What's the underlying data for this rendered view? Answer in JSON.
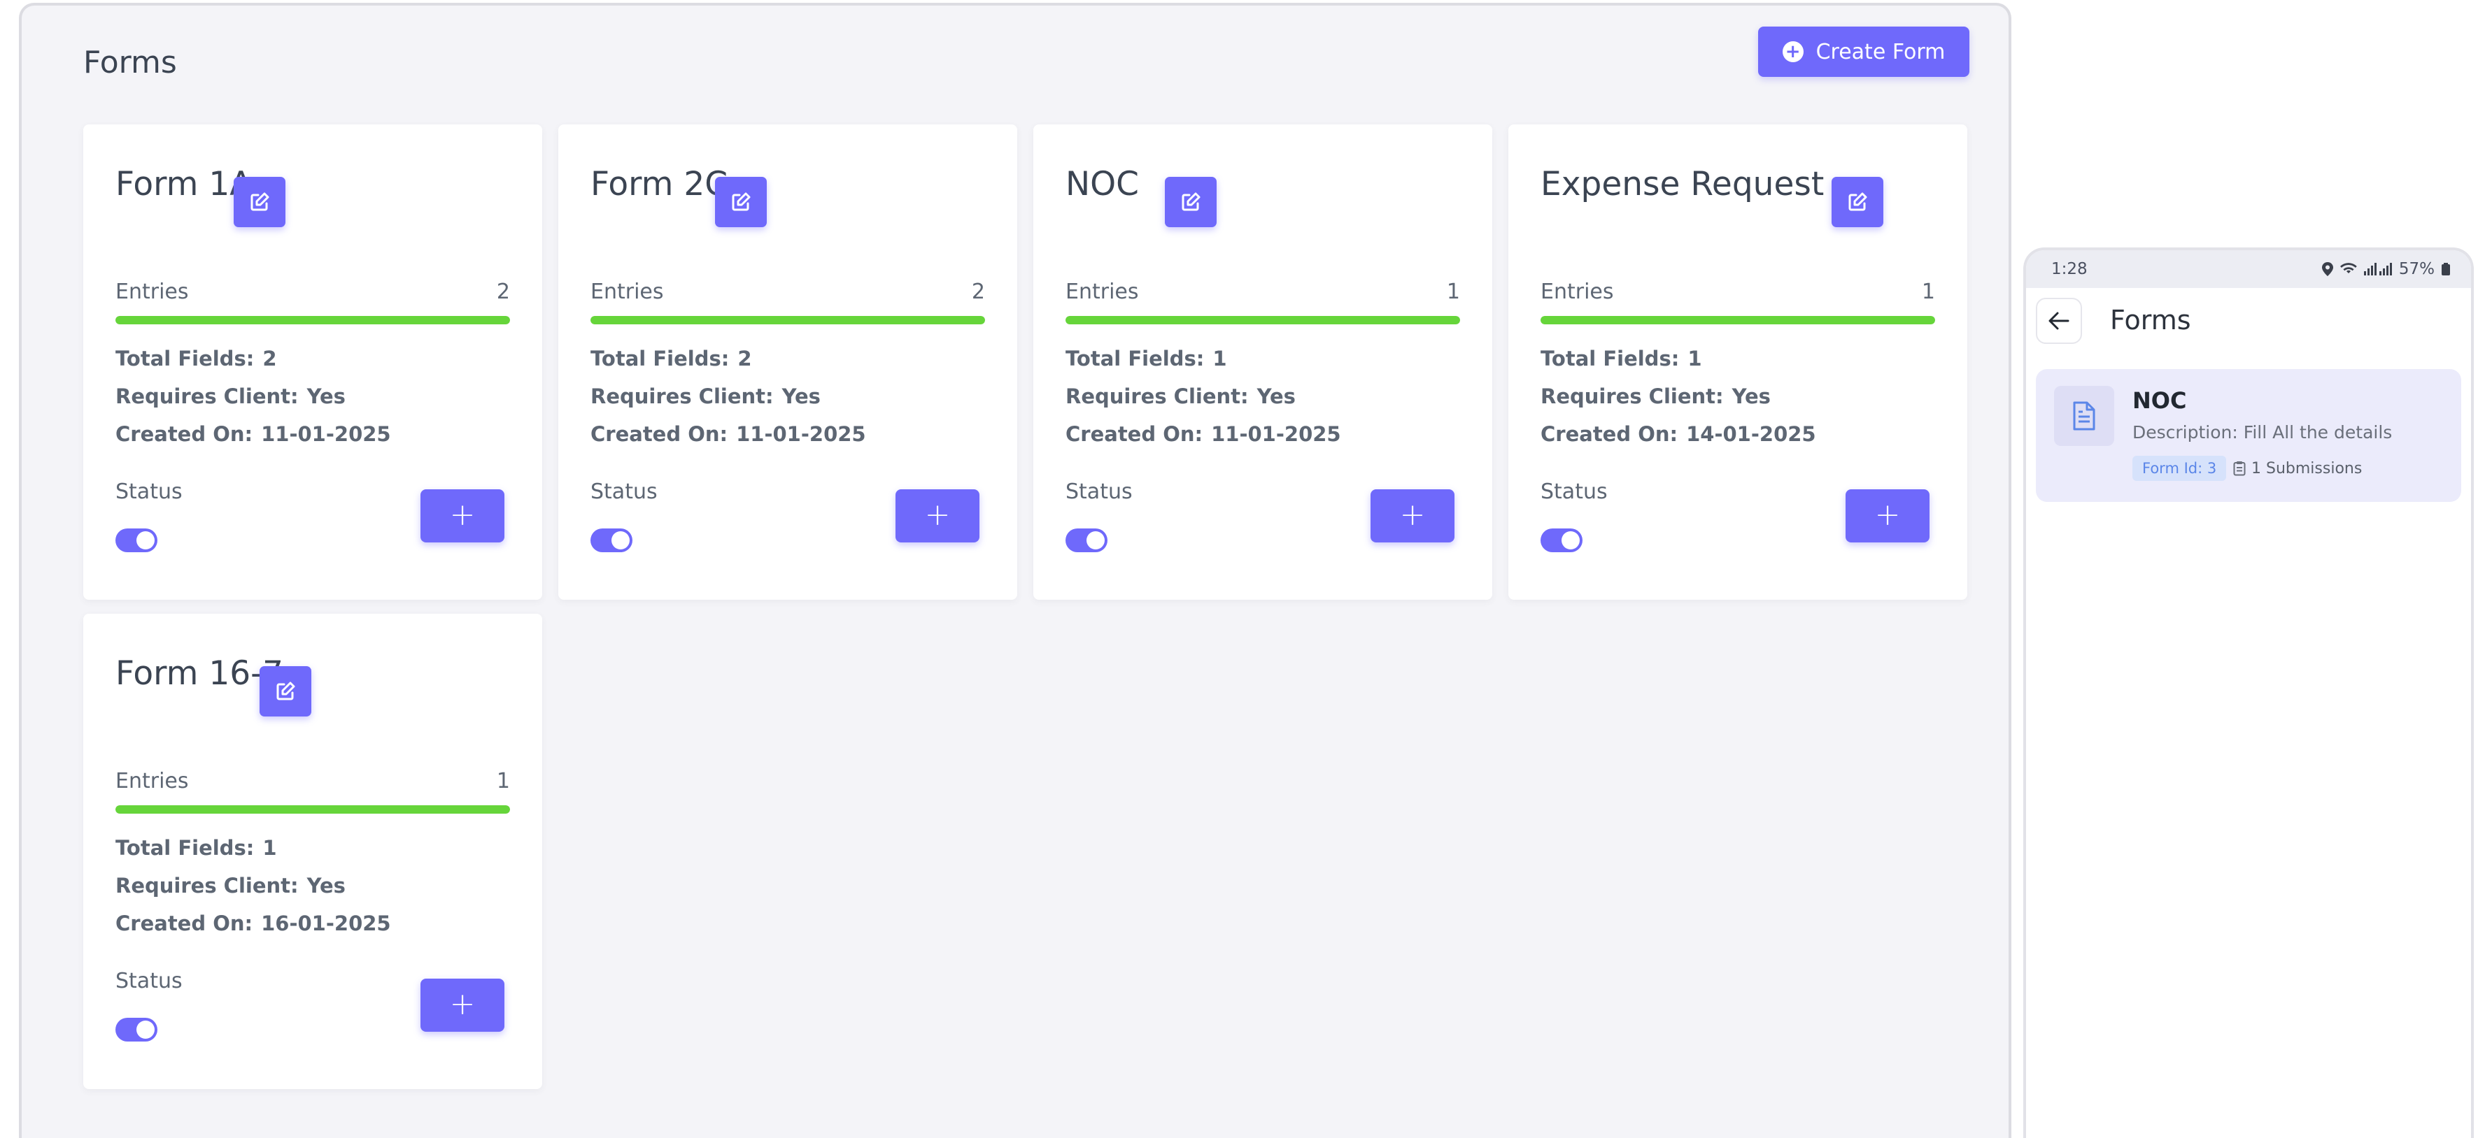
{
  "desktop": {
    "page_title": "Forms",
    "create_button_label": "Create Form",
    "labels": {
      "entries": "Entries",
      "total_fields": "Total Fields:",
      "requires_client": "Requires Client:",
      "created_on": "Created On:",
      "status": "Status",
      "add": "+"
    },
    "cards": [
      {
        "title": "Form 1A",
        "entries": "2",
        "total_fields": "2",
        "requires_client": "Yes",
        "created_on": "11-01-2025",
        "status_enabled": true,
        "progress": 1.0
      },
      {
        "title": "Form 2C",
        "entries": "2",
        "total_fields": "2",
        "requires_client": "Yes",
        "created_on": "11-01-2025",
        "status_enabled": true,
        "progress": 1.0
      },
      {
        "title": "NOC",
        "entries": "1",
        "total_fields": "1",
        "requires_client": "Yes",
        "created_on": "11-01-2025",
        "status_enabled": true,
        "progress": 1.0
      },
      {
        "title": "Expense Request",
        "entries": "1",
        "total_fields": "1",
        "requires_client": "Yes",
        "created_on": "14-01-2025",
        "status_enabled": true,
        "progress": 1.0
      },
      {
        "title": "Form 16-7",
        "entries": "1",
        "total_fields": "1",
        "requires_client": "Yes",
        "created_on": "16-01-2025",
        "status_enabled": true,
        "progress": 1.0
      }
    ]
  },
  "mobile": {
    "status_bar": {
      "time": "1:28",
      "battery": "57%"
    },
    "header_title": "Forms",
    "form_card": {
      "name": "NOC",
      "description": "Description: Fill All the details",
      "form_id_badge": "Form Id: 3",
      "submissions": "1 Submissions"
    }
  },
  "colors": {
    "accent": "#6f69fb",
    "progress": "#66d53a",
    "background": "#f4f4f8",
    "mobile_card": "#ebebfb",
    "badge_text": "#5b86e8"
  },
  "icons": [
    "plus-circle-icon",
    "edit-icon",
    "plus-icon",
    "arrow-left-icon",
    "document-icon",
    "clipboard-icon",
    "location-icon",
    "wifi-icon",
    "signal-icon",
    "battery-icon"
  ]
}
